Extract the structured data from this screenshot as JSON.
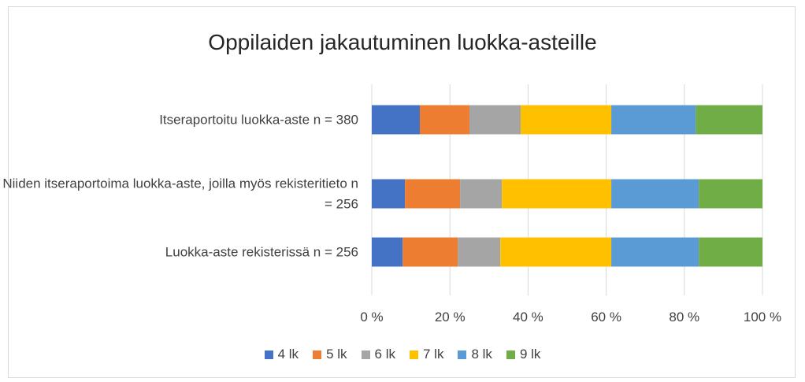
{
  "chart_data": {
    "type": "bar",
    "orientation": "horizontal",
    "stacked": true,
    "title": "Oppilaiden jakautuminen luokka-asteille",
    "categories": [
      "Itseraportoitu luokka-aste n = 380",
      "Niiden itseraportoima luokka-aste, joilla myös rekisteritieto n = 256",
      "Luokka-aste rekisterissä n = 256"
    ],
    "series": [
      {
        "name": "4 lk",
        "color": "#4472c4",
        "values": [
          12.3,
          8.5,
          7.9
        ]
      },
      {
        "name": "5 lk",
        "color": "#ed7d31",
        "values": [
          12.7,
          14.1,
          14.1
        ]
      },
      {
        "name": "6 lk",
        "color": "#a5a5a5",
        "values": [
          13.1,
          10.7,
          10.9
        ]
      },
      {
        "name": "7 lk",
        "color": "#ffc000",
        "values": [
          23.2,
          28.0,
          28.4
        ]
      },
      {
        "name": "8 lk",
        "color": "#5b9bd5",
        "values": [
          21.6,
          22.4,
          22.4
        ]
      },
      {
        "name": "9 lk",
        "color": "#70ad47",
        "values": [
          17.1,
          16.3,
          16.3
        ]
      }
    ],
    "xlim": [
      0,
      100
    ],
    "xticks": [
      {
        "value": 0,
        "label": "0 %"
      },
      {
        "value": 20,
        "label": "20 %"
      },
      {
        "value": 40,
        "label": "40 %"
      },
      {
        "value": 60,
        "label": "60 %"
      },
      {
        "value": 80,
        "label": "80 %"
      },
      {
        "value": 100,
        "label": "100 %"
      }
    ],
    "grid": true,
    "legend": "bottom"
  }
}
